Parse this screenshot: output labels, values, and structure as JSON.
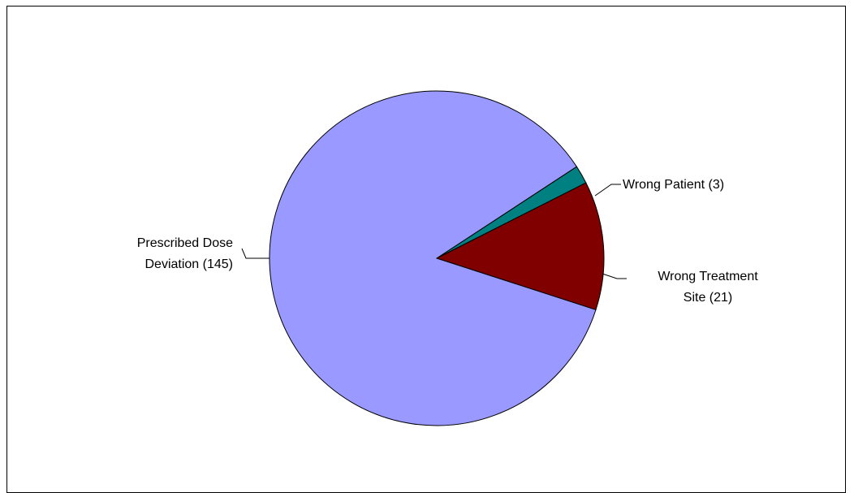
{
  "chart_data": {
    "type": "pie",
    "title": "",
    "slices": [
      {
        "label_lines": [
          "Prescribed Dose",
          "Deviation (145)"
        ],
        "category": "Prescribed Dose Deviation",
        "value": 145,
        "color": "#9999FF"
      },
      {
        "label_lines": [
          "Wrong Patient  (3)"
        ],
        "category": "Wrong Patient",
        "value": 3,
        "color": "#008080"
      },
      {
        "label_lines": [
          "Wrong Treatment",
          "Site (21)"
        ],
        "category": "Wrong Treatment Site",
        "value": 21,
        "color": "#800000"
      }
    ],
    "legend": "none",
    "data_labels": "outside with leader lines"
  }
}
